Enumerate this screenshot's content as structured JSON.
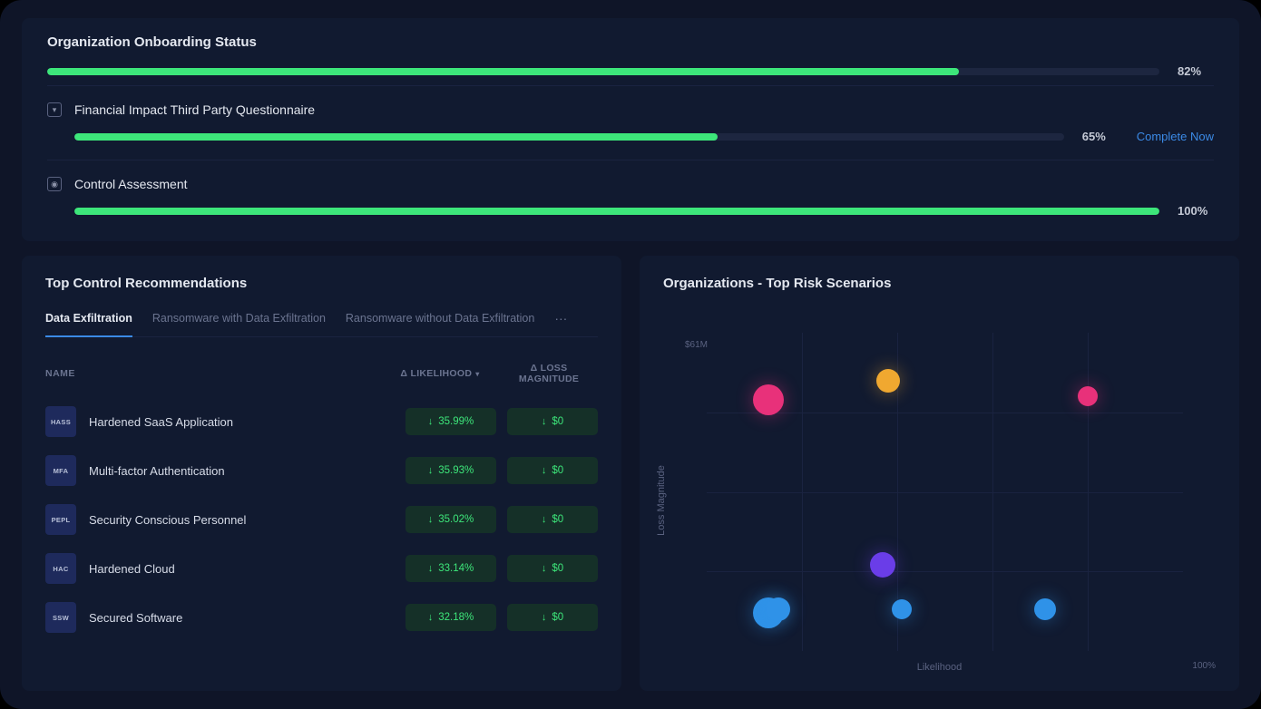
{
  "colors": {
    "bg": "#0f1528",
    "panel": "#111a30",
    "progress_track": "#1d2640",
    "progress_fill": "#3de67a",
    "text_primary": "#e4e8f0",
    "text_secondary": "#6b7490",
    "accent_link": "#3b8ae6",
    "badge_bg": "#1e2a5c",
    "pill_bg": "#153028",
    "pill_text": "#3de67a",
    "grid": "#1a2340"
  },
  "onboarding": {
    "title": "Organization Onboarding Status",
    "overall_pct": 82,
    "overall_pct_label": "82%",
    "items": [
      {
        "icon": "chevron-down",
        "title": "Financial Impact Third Party Questionnaire",
        "pct": 65,
        "pct_label": "65%",
        "action_label": "Complete Now",
        "has_action": true
      },
      {
        "icon": "shield",
        "title": "Control Assessment",
        "pct": 100,
        "pct_label": "100%",
        "has_action": false
      }
    ]
  },
  "recommendations": {
    "title": "Top Control Recommendations",
    "tabs": [
      {
        "label": "Data Exfiltration",
        "active": true
      },
      {
        "label": "Ransomware with Data Exfiltration",
        "active": false
      },
      {
        "label": "Ransomware without Data Exfiltration",
        "active": false
      }
    ],
    "columns": {
      "name": "NAME",
      "likelihood": "Δ LIKELIHOOD",
      "loss": "Δ LOSS MAGNITUDE"
    },
    "sort_indicator": "▾",
    "rows": [
      {
        "badge": "HASS",
        "name": "Hardened SaaS Application",
        "likelihood": "35.99%",
        "loss": "$0"
      },
      {
        "badge": "MFA",
        "name": "Multi-factor Authentication",
        "likelihood": "35.93%",
        "loss": "$0"
      },
      {
        "badge": "PEPL",
        "name": "Security Conscious Personnel",
        "likelihood": "35.02%",
        "loss": "$0"
      },
      {
        "badge": "HAC",
        "name": "Hardened Cloud",
        "likelihood": "33.14%",
        "loss": "$0"
      },
      {
        "badge": "SSW",
        "name": "Secured Software",
        "likelihood": "32.18%",
        "loss": "$0"
      }
    ]
  },
  "risk_chart": {
    "title": "Organizations - Top Risk Scenarios",
    "type": "scatter",
    "x_axis": {
      "label": "Likelihood",
      "max_label": "100%",
      "min": 0,
      "max": 100
    },
    "y_axis": {
      "label": "Loss Magnitude",
      "max_label": "$61M",
      "min": 0,
      "max": 61
    },
    "grid": {
      "v_lines": 4,
      "h_lines": 3,
      "color": "#1a2340"
    },
    "background_color": "#111a30",
    "points": [
      {
        "x": 13,
        "y": 79,
        "size": 34,
        "color": "#e8317a",
        "glow": "#e8317a"
      },
      {
        "x": 38,
        "y": 85,
        "size": 26,
        "color": "#f0a830",
        "glow": "#f0a830"
      },
      {
        "x": 80,
        "y": 80,
        "size": 22,
        "color": "#e8317a",
        "glow": "#e8317a"
      },
      {
        "x": 37,
        "y": 27,
        "size": 28,
        "color": "#6a3de8",
        "glow": "#6a3de8"
      },
      {
        "x": 13,
        "y": 12,
        "size": 34,
        "color": "#2f92e8",
        "glow": "#2f92e8"
      },
      {
        "x": 15,
        "y": 13,
        "size": 26,
        "color": "#2f92e8",
        "glow": "#2f92e8"
      },
      {
        "x": 41,
        "y": 13,
        "size": 22,
        "color": "#2f92e8",
        "glow": "#2f92e8"
      },
      {
        "x": 71,
        "y": 13,
        "size": 24,
        "color": "#2f92e8",
        "glow": "#2f92e8"
      }
    ]
  }
}
